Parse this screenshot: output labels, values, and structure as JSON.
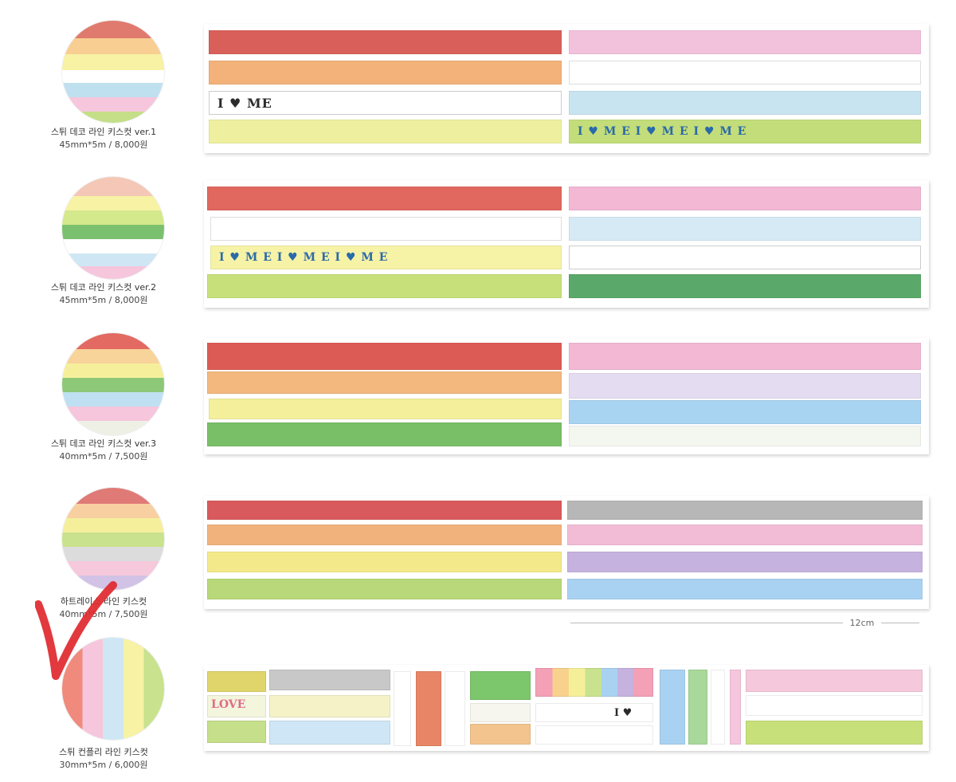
{
  "products": [
    {
      "name": "스튀 데코 라인 키스컷 ver.1",
      "spec": "45mm*5m / 8,000원",
      "tapes": [
        {
          "pattern": "treble-clef",
          "color": "#d9605a"
        },
        {
          "pattern": "wings-stars",
          "color": "#f3b27a"
        },
        {
          "pattern": "i-love-me",
          "color": "#ffffff",
          "text": "I ♥ ME"
        },
        {
          "pattern": "clover-dash",
          "color": "#eef0a0"
        },
        {
          "pattern": "dots",
          "color": "#f2c2dc"
        },
        {
          "pattern": "circles",
          "color": "#ffffff"
        },
        {
          "pattern": "cat-clef",
          "color": "#c8e4f0"
        },
        {
          "pattern": "iome-paws",
          "color": "#c2dd7a",
          "text": "I ♥ M E I ♥ M E I ♥ M E"
        }
      ]
    },
    {
      "name": "스튀 데코 라인 키스컷 ver.2",
      "spec": "45mm*5m / 8,000원",
      "tapes": [
        {
          "pattern": "gingham-glasses",
          "color": "#e0685e"
        },
        {
          "pattern": "circles",
          "color": "#ffffff"
        },
        {
          "pattern": "iome-hearts",
          "color": "#f6f2a6",
          "text": "I ♥ M E I ♥ M E I ♥ M E"
        },
        {
          "pattern": "clover-dash",
          "color": "#c8e07a"
        },
        {
          "pattern": "treble-clef",
          "color": "#f2b8d4"
        },
        {
          "pattern": "wings-stars",
          "color": "#d6eaf6"
        },
        {
          "pattern": "dots",
          "color": "#ffffff"
        },
        {
          "pattern": "dots",
          "color": "#5aa96a"
        }
      ]
    },
    {
      "name": "스튀 데코 라인 키스컷 ver.3",
      "spec": "40mm*5m / 7,500원",
      "tapes": [
        {
          "pattern": "big-dots",
          "color": "#dd5b55"
        },
        {
          "pattern": "star-line",
          "color": "#f2b87e"
        },
        {
          "pattern": "heart-line",
          "color": "#f3ef9a"
        },
        {
          "pattern": "gingham",
          "color": "#79bf68"
        },
        {
          "pattern": "flags",
          "color": "#f2b8d4"
        },
        {
          "pattern": "plaid-stars",
          "color": "#e4dcf0"
        },
        {
          "pattern": "big-dots",
          "color": "#a8d4f2"
        },
        {
          "pattern": "cars",
          "color": "#f4f6f0"
        }
      ]
    },
    {
      "name": "하트레이스 라인 키스컷",
      "spec": "40mm*5m / 7,500원",
      "tapes": [
        {
          "pattern": "lace",
          "color": "#d95a5c"
        },
        {
          "pattern": "lace",
          "color": "#f2b27c"
        },
        {
          "pattern": "lace",
          "color": "#f3e98a"
        },
        {
          "pattern": "lace",
          "color": "#b8d879"
        },
        {
          "pattern": "lace",
          "color": "#b7b7b7"
        },
        {
          "pattern": "lace",
          "color": "#f2bcd6"
        },
        {
          "pattern": "lace",
          "color": "#c6b2de"
        },
        {
          "pattern": "lace",
          "color": "#a9d2f2"
        }
      ]
    },
    {
      "name": "스튀 컨플리 라인 키스컷",
      "spec": "30mm*5m / 6,000원",
      "tapes": []
    }
  ],
  "measure_label": "12cm",
  "sampler": {
    "love_text": "LOVE",
    "iome_text": "I ♥ ME"
  },
  "colors": {
    "checkmark": "#e0282e",
    "sheet_shadow": "#cccccc"
  }
}
